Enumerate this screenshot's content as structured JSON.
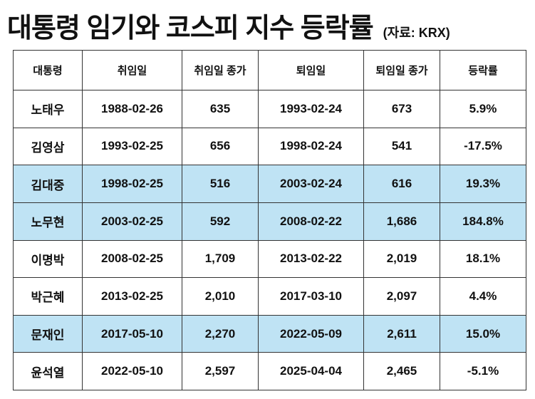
{
  "header": {
    "title": "대통령 임기와 코스피 지수 등락률",
    "source": "(자료: KRX)"
  },
  "table": {
    "columns": [
      "대통령",
      "취임일",
      "취임일 종가",
      "퇴임일",
      "퇴임일 종가",
      "등락률"
    ],
    "rows": [
      {
        "cells": [
          "노태우",
          "1988-02-26",
          "635",
          "1993-02-24",
          "673",
          "5.9%"
        ],
        "fill": "#ffffff"
      },
      {
        "cells": [
          "김영삼",
          "1993-02-25",
          "656",
          "1998-02-24",
          "541",
          "-17.5%"
        ],
        "fill": "#ffffff"
      },
      {
        "cells": [
          "김대중",
          "1998-02-25",
          "516",
          "2003-02-24",
          "616",
          "19.3%"
        ],
        "fill": "#bfe3f4"
      },
      {
        "cells": [
          "노무현",
          "2003-02-25",
          "592",
          "2008-02-22",
          "1,686",
          "184.8%"
        ],
        "fill": "#bfe3f4"
      },
      {
        "cells": [
          "이명박",
          "2008-02-25",
          "1,709",
          "2013-02-22",
          "2,019",
          "18.1%"
        ],
        "fill": "#ffffff"
      },
      {
        "cells": [
          "박근혜",
          "2013-02-25",
          "2,010",
          "2017-03-10",
          "2,097",
          "4.4%"
        ],
        "fill": "#ffffff"
      },
      {
        "cells": [
          "문재인",
          "2017-05-10",
          "2,270",
          "2022-05-09",
          "2,611",
          "15.0%"
        ],
        "fill": "#bfe3f4"
      },
      {
        "cells": [
          "윤석열",
          "2022-05-10",
          "2,597",
          "2025-04-04",
          "2,465",
          "-5.1%"
        ],
        "fill": "#ffffff"
      }
    ]
  }
}
